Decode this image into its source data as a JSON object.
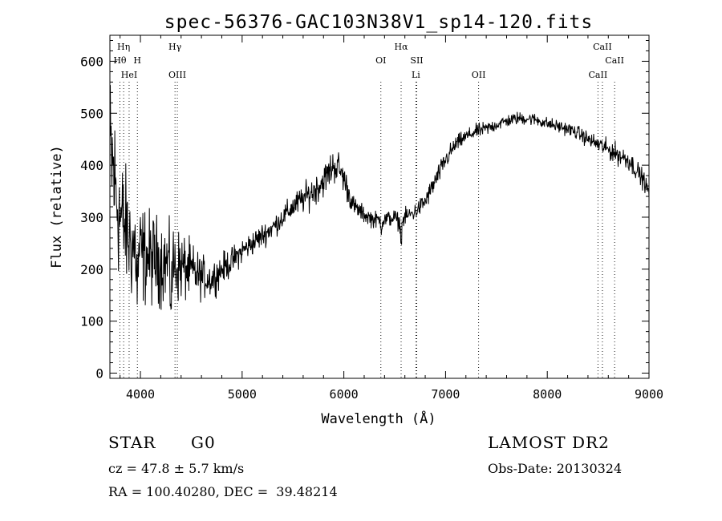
{
  "chart_data": {
    "type": "line",
    "title": "spec-56376-GAC103N38V1_sp14-120.fits",
    "xlabel": "Wavelength (Å)",
    "ylabel": "Flux (relative)",
    "xlim": [
      3700,
      9000
    ],
    "ylim": [
      -10,
      650
    ],
    "x_ticks": [
      4000,
      5000,
      6000,
      7000,
      8000,
      9000
    ],
    "y_ticks": [
      0,
      100,
      200,
      300,
      400,
      500,
      600
    ],
    "x_tick_labels": [
      "4000",
      "5000",
      "6000",
      "7000",
      "8000",
      "9000"
    ],
    "y_tick_labels": [
      "0",
      "100",
      "200",
      "300",
      "400",
      "500",
      "600"
    ],
    "line_color": "#000000",
    "line_markers": [
      {
        "label": "Hη",
        "wavelength": 3835,
        "row": 0
      },
      {
        "label": "Hθ",
        "wavelength": 3798,
        "row": 1
      },
      {
        "label": "H",
        "wavelength": 3970,
        "row": 1
      },
      {
        "label": "HeI",
        "wavelength": 3889,
        "row": 2
      },
      {
        "label": "Hγ",
        "wavelength": 4340,
        "row": 0
      },
      {
        "label": "OIII",
        "wavelength": 4363,
        "row": 2
      },
      {
        "label": "OI",
        "wavelength": 6364,
        "row": 1
      },
      {
        "label": "Hα",
        "wavelength": 6563,
        "row": 0
      },
      {
        "label": "SII",
        "wavelength": 6717,
        "row": 1
      },
      {
        "label": "Li",
        "wavelength": 6708,
        "row": 2
      },
      {
        "label": "OII",
        "wavelength": 7325,
        "row": 2
      },
      {
        "label": "CaII",
        "wavelength": 8542,
        "row": 0
      },
      {
        "label": "CaII",
        "wavelength": 8662,
        "row": 1
      },
      {
        "label": "CaII",
        "wavelength": 8498,
        "row": 2
      }
    ],
    "spectrum": {
      "x": [
        3700,
        3725,
        3750,
        3775,
        3800,
        3850,
        3900,
        3950,
        4000,
        4100,
        4200,
        4300,
        4400,
        4500,
        4600,
        4700,
        4800,
        4900,
        5000,
        5100,
        5200,
        5300,
        5400,
        5500,
        5600,
        5700,
        5800,
        5850,
        5900,
        5950,
        6000,
        6050,
        6100,
        6200,
        6300,
        6400,
        6500,
        6560,
        6600,
        6700,
        6800,
        6900,
        7000,
        7100,
        7200,
        7300,
        7400,
        7500,
        7600,
        7700,
        7800,
        7900,
        8000,
        8100,
        8200,
        8300,
        8400,
        8500,
        8600,
        8700,
        8800,
        8900,
        8950,
        9000
      ],
      "base": [
        420,
        400,
        360,
        330,
        300,
        280,
        250,
        240,
        230,
        220,
        215,
        210,
        205,
        195,
        185,
        180,
        200,
        215,
        235,
        250,
        265,
        280,
        300,
        320,
        335,
        350,
        370,
        385,
        400,
        395,
        375,
        345,
        320,
        305,
        295,
        295,
        300,
        285,
        300,
        310,
        330,
        370,
        410,
        440,
        455,
        465,
        470,
        478,
        485,
        490,
        490,
        487,
        480,
        475,
        470,
        462,
        450,
        440,
        430,
        420,
        410,
        385,
        370,
        345
      ],
      "noise": [
        120,
        120,
        110,
        100,
        95,
        85,
        80,
        75,
        70,
        65,
        60,
        55,
        50,
        40,
        30,
        25,
        22,
        20,
        18,
        17,
        17,
        16,
        16,
        18,
        20,
        22,
        22,
        24,
        25,
        24,
        20,
        18,
        14,
        12,
        12,
        12,
        12,
        12,
        12,
        12,
        14,
        14,
        14,
        12,
        10,
        10,
        10,
        9,
        9,
        9,
        9,
        9,
        9,
        9,
        9,
        10,
        11,
        12,
        14,
        15,
        15,
        14,
        13,
        12
      ]
    }
  },
  "info": {
    "object_class": "STAR",
    "subclass": "G0",
    "survey": "LAMOST DR2",
    "redshift": "cz = 47.8 ± 5.7 km/s",
    "obs_date": "Obs-Date: 20130324",
    "coords": "RA = 100.40280, DEC =  39.48214"
  }
}
